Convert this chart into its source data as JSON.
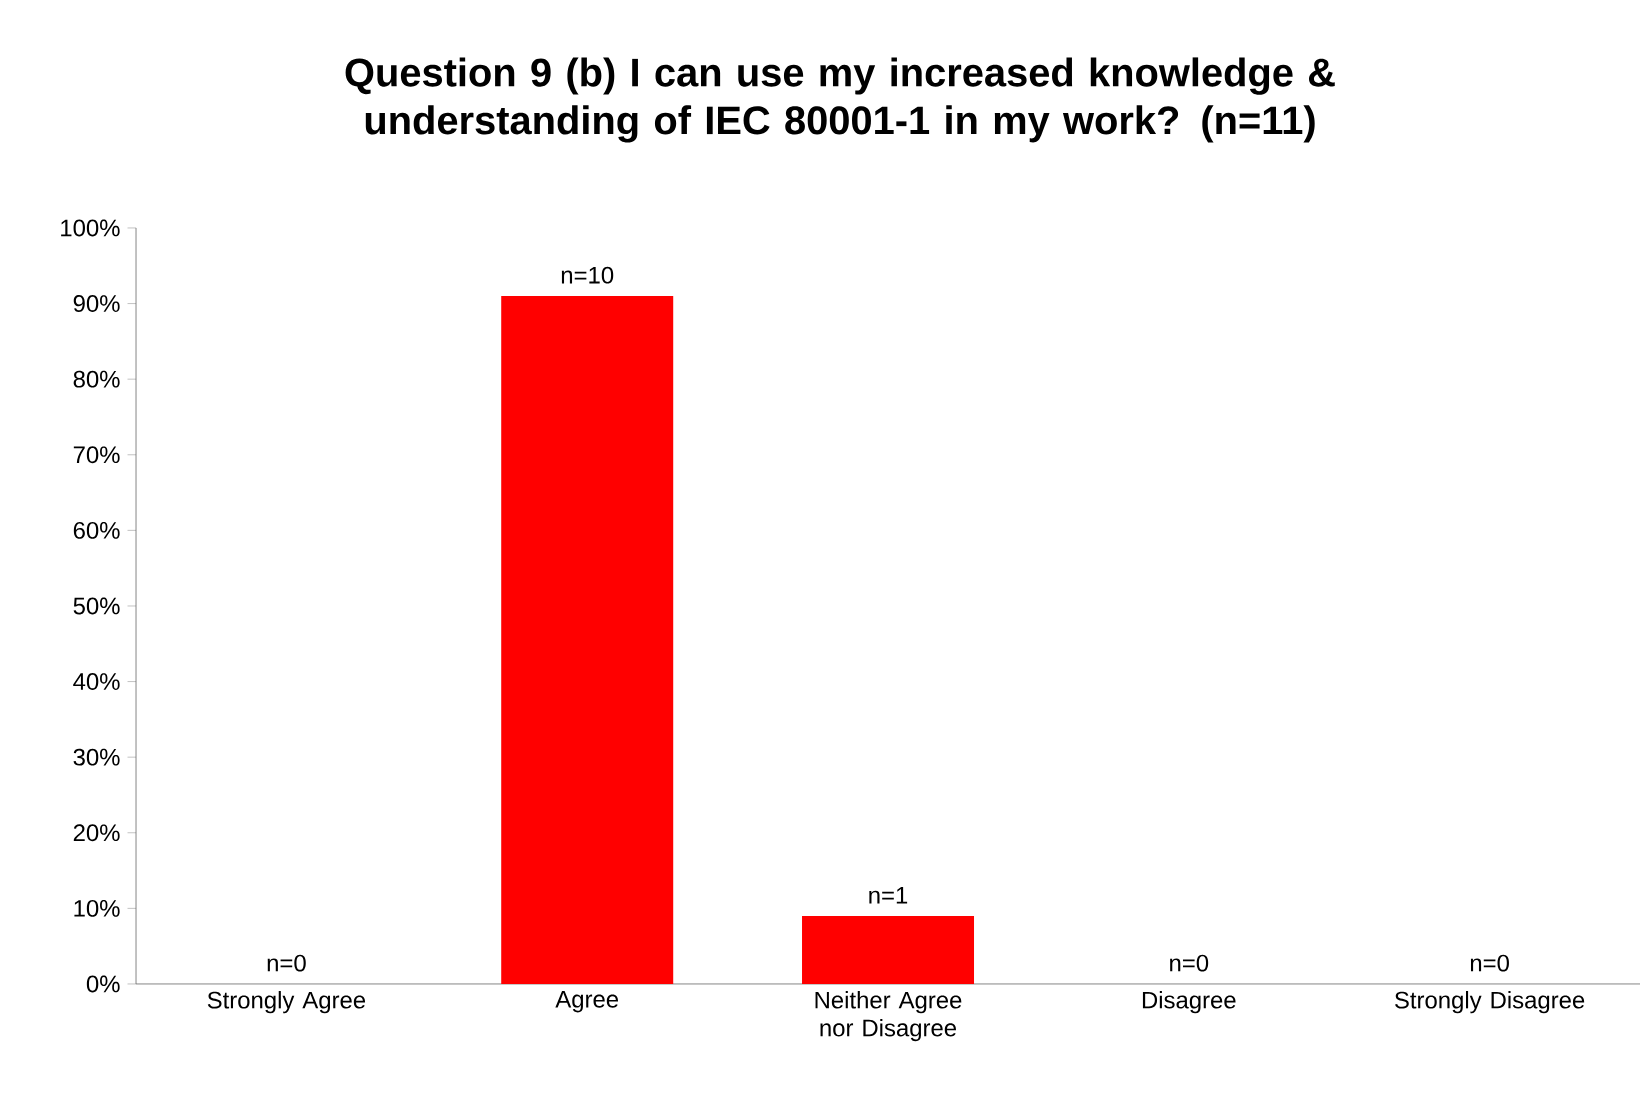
{
  "chart_data": {
    "type": "bar",
    "title": "Question 9 (b) I can use my increased knowledge & understanding of IEC 80001-1 in my work? (n=11)",
    "categories": [
      "Strongly Agree",
      "Agree",
      "Neither Agree nor Disagree",
      "Disagree",
      "Strongly Disagree"
    ],
    "values": [
      0,
      91,
      9,
      0,
      0
    ],
    "annotations": [
      {
        "text": "n=0",
        "x": "Strongly Agree",
        "y": 0
      },
      {
        "text": "n=10",
        "x": "Agree",
        "y": 91
      },
      {
        "text": "n=1",
        "x": "Neither Agree nor Disagree",
        "y": 9
      },
      {
        "text": "n=0",
        "x": "Disagree",
        "y": 0
      },
      {
        "text": "n=0",
        "x": "Strongly Disagree",
        "y": 0
      }
    ],
    "color": "#ff0000",
    "ylim": [
      0,
      100
    ],
    "yticks": [
      {
        "value": 0,
        "label": "0%"
      },
      {
        "value": 10,
        "label": "10%"
      },
      {
        "value": 20,
        "label": "20%"
      },
      {
        "value": 30,
        "label": "30%"
      },
      {
        "value": 40,
        "label": "40%"
      },
      {
        "value": 50,
        "label": "50%"
      },
      {
        "value": 60,
        "label": "60%"
      },
      {
        "value": 70,
        "label": "70%"
      },
      {
        "value": 80,
        "label": "80%"
      },
      {
        "value": 90,
        "label": "90%"
      },
      {
        "value": 100,
        "label": "100%"
      }
    ],
    "grid": false
  }
}
